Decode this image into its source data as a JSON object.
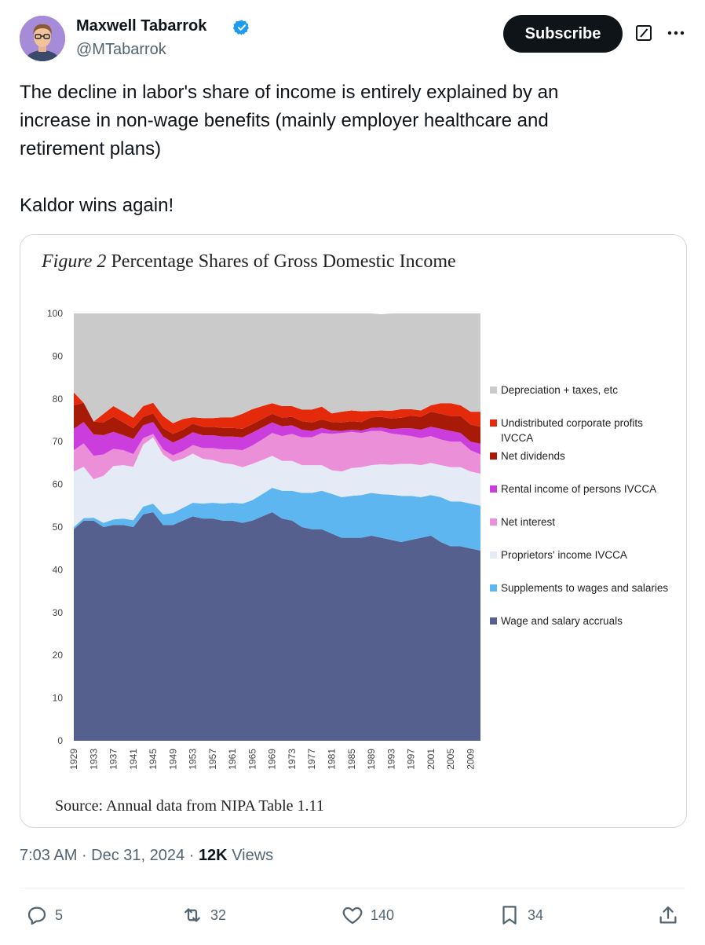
{
  "author": {
    "name": "Maxwell Tabarrok",
    "handle": "@MTabarrok",
    "verified": true,
    "avatar_icon": "avatar-icon"
  },
  "header": {
    "subscribe_label": "Subscribe",
    "grok_icon": "grok-icon",
    "more_icon": "more-icon"
  },
  "tweet": {
    "text_line1": "The decline in labor's share of income is entirely explained by an increase in non-wage benefits (mainly employer healthcare and retirement plans)",
    "text_line2": "Kaldor wins again!"
  },
  "figure": {
    "title_prefix": "Figure 2",
    "title_rest": " Percentage Shares of Gross Domestic Income",
    "source": "Source: Annual data from NIPA Table 1.11"
  },
  "chart_data": {
    "type": "area",
    "stacked": true,
    "ylim": [
      0,
      100
    ],
    "yticks": [
      "0",
      "10",
      "20",
      "30",
      "40",
      "50",
      "60",
      "70",
      "80",
      "90",
      "100"
    ],
    "xticks": [
      "1929",
      "1933",
      "1937",
      "1941",
      "1945",
      "1949",
      "1953",
      "1957",
      "1961",
      "1965",
      "1969",
      "1973",
      "1977",
      "1981",
      "1985",
      "1989",
      "1993",
      "1997",
      "2001",
      "2005",
      "2009"
    ],
    "x": [
      1929,
      1931,
      1933,
      1935,
      1937,
      1939,
      1941,
      1943,
      1945,
      1947,
      1949,
      1951,
      1953,
      1955,
      1957,
      1959,
      1961,
      1963,
      1965,
      1967,
      1969,
      1971,
      1973,
      1975,
      1977,
      1979,
      1981,
      1983,
      1985,
      1987,
      1989,
      1991,
      1993,
      1995,
      1997,
      1999,
      2001,
      2003,
      2005,
      2007,
      2009,
      2011
    ],
    "legend_position": "right",
    "series": [
      {
        "name": "Wage and salary accruals",
        "color": "#55608f",
        "values": [
          49.5,
          51.5,
          51.5,
          50.0,
          50.5,
          50.5,
          50.0,
          53.0,
          53.5,
          50.5,
          50.5,
          51.5,
          52.5,
          52.0,
          52.0,
          51.5,
          51.5,
          51.0,
          51.5,
          52.5,
          53.5,
          52.0,
          51.5,
          50.0,
          49.5,
          49.5,
          48.5,
          47.5,
          47.5,
          47.5,
          48.0,
          47.5,
          47.0,
          46.5,
          47.0,
          47.5,
          48.0,
          46.5,
          45.5,
          45.5,
          45.0,
          44.5
        ]
      },
      {
        "name": "Supplements to wages and salaries",
        "color": "#5eb6f0",
        "values": [
          0.5,
          0.6,
          0.7,
          1.0,
          1.3,
          1.5,
          1.6,
          1.8,
          2.0,
          2.5,
          2.8,
          3.0,
          3.2,
          3.5,
          3.7,
          4.0,
          4.2,
          4.5,
          4.8,
          5.2,
          5.7,
          6.5,
          7.0,
          8.0,
          8.5,
          9.0,
          9.3,
          9.5,
          9.8,
          10.0,
          10.0,
          10.2,
          10.6,
          10.8,
          10.3,
          9.5,
          9.5,
          10.5,
          10.5,
          10.5,
          10.5,
          10.5
        ]
      },
      {
        "name": "Proprietors' income IVCCA",
        "color": "#e4eaf6",
        "values": [
          13.0,
          12.0,
          9.0,
          11.0,
          12.5,
          12.5,
          12.5,
          14.5,
          15.5,
          14.0,
          12.0,
          11.5,
          11.5,
          10.5,
          10.0,
          9.5,
          9.0,
          8.5,
          8.5,
          8.0,
          7.5,
          7.0,
          7.0,
          6.5,
          6.5,
          6.0,
          5.5,
          6.0,
          6.5,
          6.5,
          6.5,
          7.0,
          7.0,
          7.5,
          7.5,
          7.5,
          7.5,
          7.5,
          8.0,
          8.0,
          7.5,
          7.5
        ]
      },
      {
        "name": "Net interest",
        "color": "#ec8fd9",
        "values": [
          5.0,
          5.5,
          5.5,
          5.0,
          4.0,
          3.5,
          3.0,
          1.5,
          0.8,
          1.2,
          1.5,
          1.8,
          2.0,
          2.5,
          2.8,
          3.2,
          3.5,
          4.0,
          4.3,
          4.8,
          5.3,
          5.8,
          6.3,
          6.5,
          6.5,
          7.5,
          8.5,
          9.0,
          8.5,
          8.0,
          8.0,
          7.8,
          7.3,
          6.8,
          6.5,
          6.3,
          6.3,
          6.0,
          6.0,
          6.0,
          5.0,
          4.5
        ]
      },
      {
        "name": "Rental income of persons IVCCA",
        "color": "#cc3ddd",
        "values": [
          5.0,
          5.0,
          5.0,
          4.5,
          4.0,
          3.5,
          3.5,
          3.0,
          2.8,
          3.0,
          3.0,
          3.0,
          3.0,
          3.0,
          3.0,
          3.0,
          3.0,
          3.0,
          3.0,
          2.8,
          2.5,
          2.3,
          2.0,
          1.8,
          1.5,
          1.2,
          0.8,
          0.5,
          0.5,
          0.6,
          0.7,
          0.8,
          1.0,
          1.5,
          1.8,
          2.0,
          2.2,
          2.5,
          2.5,
          2.0,
          2.0,
          2.5
        ]
      },
      {
        "name": "Net dividends",
        "color": "#a81a08",
        "values": [
          5.5,
          4.5,
          3.0,
          3.0,
          3.5,
          3.0,
          2.5,
          2.0,
          2.0,
          2.0,
          2.0,
          2.0,
          2.0,
          2.0,
          2.0,
          2.0,
          2.0,
          2.0,
          2.0,
          2.0,
          2.0,
          2.0,
          2.0,
          2.0,
          2.0,
          2.0,
          2.0,
          2.0,
          2.0,
          2.0,
          2.5,
          2.5,
          2.5,
          2.5,
          3.0,
          3.0,
          3.5,
          3.5,
          3.5,
          4.0,
          4.0,
          4.0
        ]
      },
      {
        "name": "Undistributed corporate profits IVCCA",
        "color": "#e52a0c",
        "values": [
          3.0,
          0.0,
          0.0,
          2.0,
          2.5,
          2.5,
          2.5,
          2.5,
          2.5,
          2.8,
          2.5,
          2.5,
          1.5,
          2.0,
          2.0,
          2.5,
          2.5,
          3.5,
          3.5,
          3.0,
          2.5,
          2.7,
          2.5,
          2.7,
          3.0,
          3.0,
          2.0,
          2.5,
          2.5,
          2.5,
          1.5,
          1.5,
          1.8,
          2.0,
          1.5,
          1.5,
          1.5,
          2.5,
          3.0,
          2.5,
          3.0,
          3.5
        ]
      },
      {
        "name": "Depreciation + taxes, etc",
        "color": "#cacaca",
        "values": [
          18.5,
          20.9,
          25.3,
          23.5,
          22.2,
          23.0,
          24.4,
          21.7,
          20.9,
          24.0,
          25.7,
          24.7,
          24.3,
          24.5,
          24.5,
          24.3,
          24.3,
          23.5,
          22.4,
          21.7,
          22.0,
          22.4,
          22.2,
          22.5,
          22.5,
          21.8,
          23.4,
          23.0,
          22.7,
          22.9,
          22.8,
          22.5,
          22.8,
          22.4,
          22.4,
          22.7,
          21.5,
          21.0,
          21.5,
          21.5,
          23.0,
          23.0
        ]
      }
    ],
    "legend_labels": [
      "Depreciation + taxes, etc",
      "Undistributed corporate profits\nIVCCA",
      "Net dividends",
      "Rental income of persons IVCCA",
      "Net interest",
      "Proprietors' income IVCCA",
      "Supplements to wages and salaries",
      "Wage and salary accruals"
    ]
  },
  "meta": {
    "time": "7:03 AM",
    "sep1": " · ",
    "date": "Dec 31, 2024",
    "sep2": " · ",
    "views_count": "12K",
    "views_label": " Views"
  },
  "actions": {
    "replies": "5",
    "reposts": "32",
    "likes": "140",
    "bookmarks": "34"
  }
}
